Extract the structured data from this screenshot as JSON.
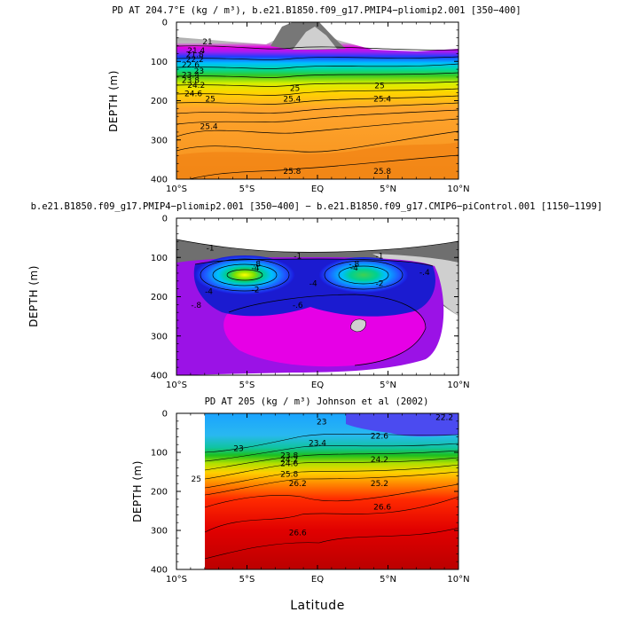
{
  "chart_data": [
    {
      "type": "heatmap",
      "title": "PD AT 204.7°E (kg / m³), b.e21.B1850.f09_g17.PMIP4−pliomip2.001 [350−400]",
      "xlabel": "",
      "ylabel": "DEPTH (m)",
      "xlim": [
        -10,
        10
      ],
      "ylim": [
        0,
        400
      ],
      "x_ticks": [
        "10°S",
        "5°S",
        "EQ",
        "5°N",
        "10°N"
      ],
      "y_ticks": [
        "0",
        "100",
        "200",
        "300",
        "400"
      ],
      "contour_labels": [
        {
          "text": "21",
          "x": -7.8,
          "y": 50
        },
        {
          "text": "21.4",
          "x": -8.6,
          "y": 72
        },
        {
          "text": "21.8",
          "x": -8.7,
          "y": 83
        },
        {
          "text": "22.2",
          "x": -8.7,
          "y": 95
        },
        {
          "text": "22.6",
          "x": -9.0,
          "y": 108
        },
        {
          "text": "23",
          "x": -8.4,
          "y": 124
        },
        {
          "text": "23.4",
          "x": -9.0,
          "y": 134
        },
        {
          "text": "23.8",
          "x": -9.0,
          "y": 148
        },
        {
          "text": "24.2",
          "x": -8.6,
          "y": 160
        },
        {
          "text": "24.6",
          "x": -8.8,
          "y": 182
        },
        {
          "text": "25",
          "x": -7.6,
          "y": 196
        },
        {
          "text": "25",
          "x": -1.6,
          "y": 168
        },
        {
          "text": "25",
          "x": 4.4,
          "y": 162
        },
        {
          "text": "25.4",
          "x": -1.8,
          "y": 196
        },
        {
          "text": "25.4",
          "x": 4.6,
          "y": 196
        },
        {
          "text": "25.4",
          "x": -7.7,
          "y": 266
        },
        {
          "text": "25.8",
          "x": -1.8,
          "y": 380
        },
        {
          "text": "25.8",
          "x": 4.6,
          "y": 380
        }
      ]
    },
    {
      "type": "heatmap",
      "title": "b.e21.B1850.f09_g17.PMIP4−pliomip2.001 [350−400] − b.e21.B1850.f09_g17.CMIP6−piControl.001 [1150−1199]",
      "xlabel": "",
      "ylabel": "DEPTH (m)",
      "xlim": [
        -10,
        10
      ],
      "ylim": [
        0,
        400
      ],
      "x_ticks": [
        "10°S",
        "5°S",
        "EQ",
        "5°N",
        "10°N"
      ],
      "y_ticks": [
        "0",
        "100",
        "200",
        "300",
        "400"
      ],
      "contour_labels": [
        {
          "text": "-1",
          "x": -7.6,
          "y": 76
        },
        {
          "text": "-1",
          "x": -1.4,
          "y": 96
        },
        {
          "text": "-1",
          "x": 4.4,
          "y": 96
        },
        {
          "text": "-.8",
          "x": -4.4,
          "y": 116
        },
        {
          "text": "-.8",
          "x": 2.6,
          "y": 116
        },
        {
          "text": "-4",
          "x": -4.4,
          "y": 126
        },
        {
          "text": "-4",
          "x": 2.6,
          "y": 126
        },
        {
          "text": "-.4",
          "x": 7.6,
          "y": 138
        },
        {
          "text": "-2",
          "x": -4.4,
          "y": 182
        },
        {
          "text": "-4",
          "x": -7.7,
          "y": 186
        },
        {
          "text": "-4",
          "x": -0.3,
          "y": 166
        },
        {
          "text": "-.6",
          "x": -1.4,
          "y": 222
        },
        {
          "text": "-.8",
          "x": -8.6,
          "y": 222
        },
        {
          "text": "-2",
          "x": 4.4,
          "y": 166
        }
      ]
    },
    {
      "type": "heatmap",
      "title": "PD AT 205 (kg / m³) Johnson et al (2002)",
      "xlabel": "Latitude",
      "ylabel": "DEPTH (m)",
      "xlim": [
        -10,
        10
      ],
      "ylim": [
        0,
        400
      ],
      "data_x_range": [
        -8,
        10
      ],
      "x_ticks": [
        "10°S",
        "5°S",
        "EQ",
        "5°N",
        "10°N"
      ],
      "y_ticks": [
        "0",
        "100",
        "200",
        "300",
        "400"
      ],
      "contour_labels": [
        {
          "text": "22.2",
          "x": 9.0,
          "y": 10
        },
        {
          "text": "23",
          "x": 0.3,
          "y": 22
        },
        {
          "text": "22.6",
          "x": 4.4,
          "y": 58
        },
        {
          "text": "23",
          "x": -5.6,
          "y": 90
        },
        {
          "text": "23.4",
          "x": 0.0,
          "y": 76
        },
        {
          "text": "23.8",
          "x": -2.0,
          "y": 108
        },
        {
          "text": "24.2",
          "x": -2.0,
          "y": 118
        },
        {
          "text": "24.6",
          "x": -2.0,
          "y": 128
        },
        {
          "text": "24.2",
          "x": 4.4,
          "y": 118
        },
        {
          "text": "25",
          "x": -8.6,
          "y": 168
        },
        {
          "text": "25.8",
          "x": -2.0,
          "y": 156
        },
        {
          "text": "26.2",
          "x": -1.4,
          "y": 180
        },
        {
          "text": "25.2",
          "x": 4.4,
          "y": 180
        },
        {
          "text": "26.6",
          "x": -1.4,
          "y": 306
        },
        {
          "text": "26.6",
          "x": 4.6,
          "y": 240
        }
      ]
    }
  ]
}
